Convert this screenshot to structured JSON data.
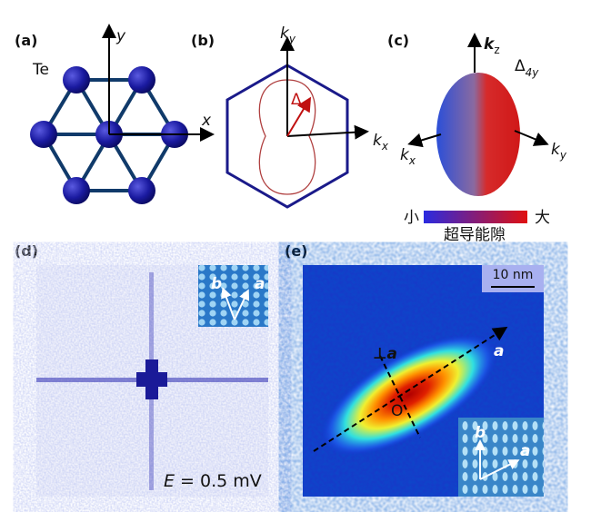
{
  "a": {
    "label": "(a)",
    "atom": "Te",
    "x_axis": "x",
    "y_axis": "y"
  },
  "b": {
    "label": "(b)",
    "ky": {
      "base": "k",
      "sub": "y"
    },
    "kx": {
      "base": "k",
      "sub": "x"
    },
    "gap": "Δ"
  },
  "c": {
    "label": "(c)",
    "kz": {
      "base": "k",
      "sub": "z"
    },
    "gap": {
      "base": "Δ",
      "sub": "4y"
    },
    "kx": {
      "base": "k",
      "sub": "x"
    },
    "ky": {
      "base": "k",
      "sub": "y"
    },
    "colorbar": {
      "min": "小",
      "max": "大",
      "title": "超导能隙"
    }
  },
  "d": {
    "label": "(d)",
    "inset": {
      "b": "b",
      "a": "a"
    },
    "energy": {
      "var": "E",
      "rest": " = 0.5 mV"
    }
  },
  "e": {
    "label": "(e)",
    "scale_bar": "10 nm",
    "perp": "⊥",
    "perp_axis": "a",
    "axis": "a",
    "origin": "O",
    "inset": {
      "b": "b",
      "a": "a"
    }
  }
}
